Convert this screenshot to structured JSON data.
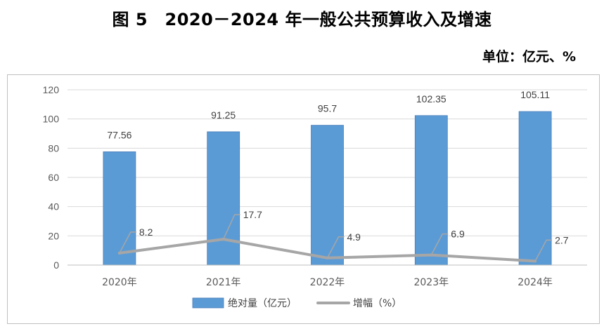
{
  "title": "图 5　2020－2024 年一般公共预算收入及增速",
  "unit_label": "单位：亿元、%",
  "colors": {
    "bar": "#5b9bd5",
    "line": "#a6a6a6",
    "grid": "#d9d9d9"
  },
  "chart_data": {
    "type": "bar",
    "categories": [
      "2020年",
      "2021年",
      "2022年",
      "2023年",
      "2024年"
    ],
    "series": [
      {
        "name": "绝对量（亿元）",
        "type": "bar",
        "values": [
          77.56,
          91.25,
          95.7,
          102.35,
          105.11
        ],
        "labels": [
          "77.56",
          "91.25",
          "95.7",
          "102.35",
          "105.11"
        ]
      },
      {
        "name": "增幅（%）",
        "type": "line",
        "values": [
          8.2,
          17.7,
          4.9,
          6.9,
          2.7
        ],
        "labels": [
          "8.2",
          "17.7",
          "4.9",
          "6.9",
          "2.7"
        ]
      }
    ],
    "ylim": [
      0,
      120
    ],
    "yticks": [
      0,
      20,
      40,
      60,
      80,
      100,
      120
    ],
    "grid": true,
    "legend": "bottom"
  }
}
